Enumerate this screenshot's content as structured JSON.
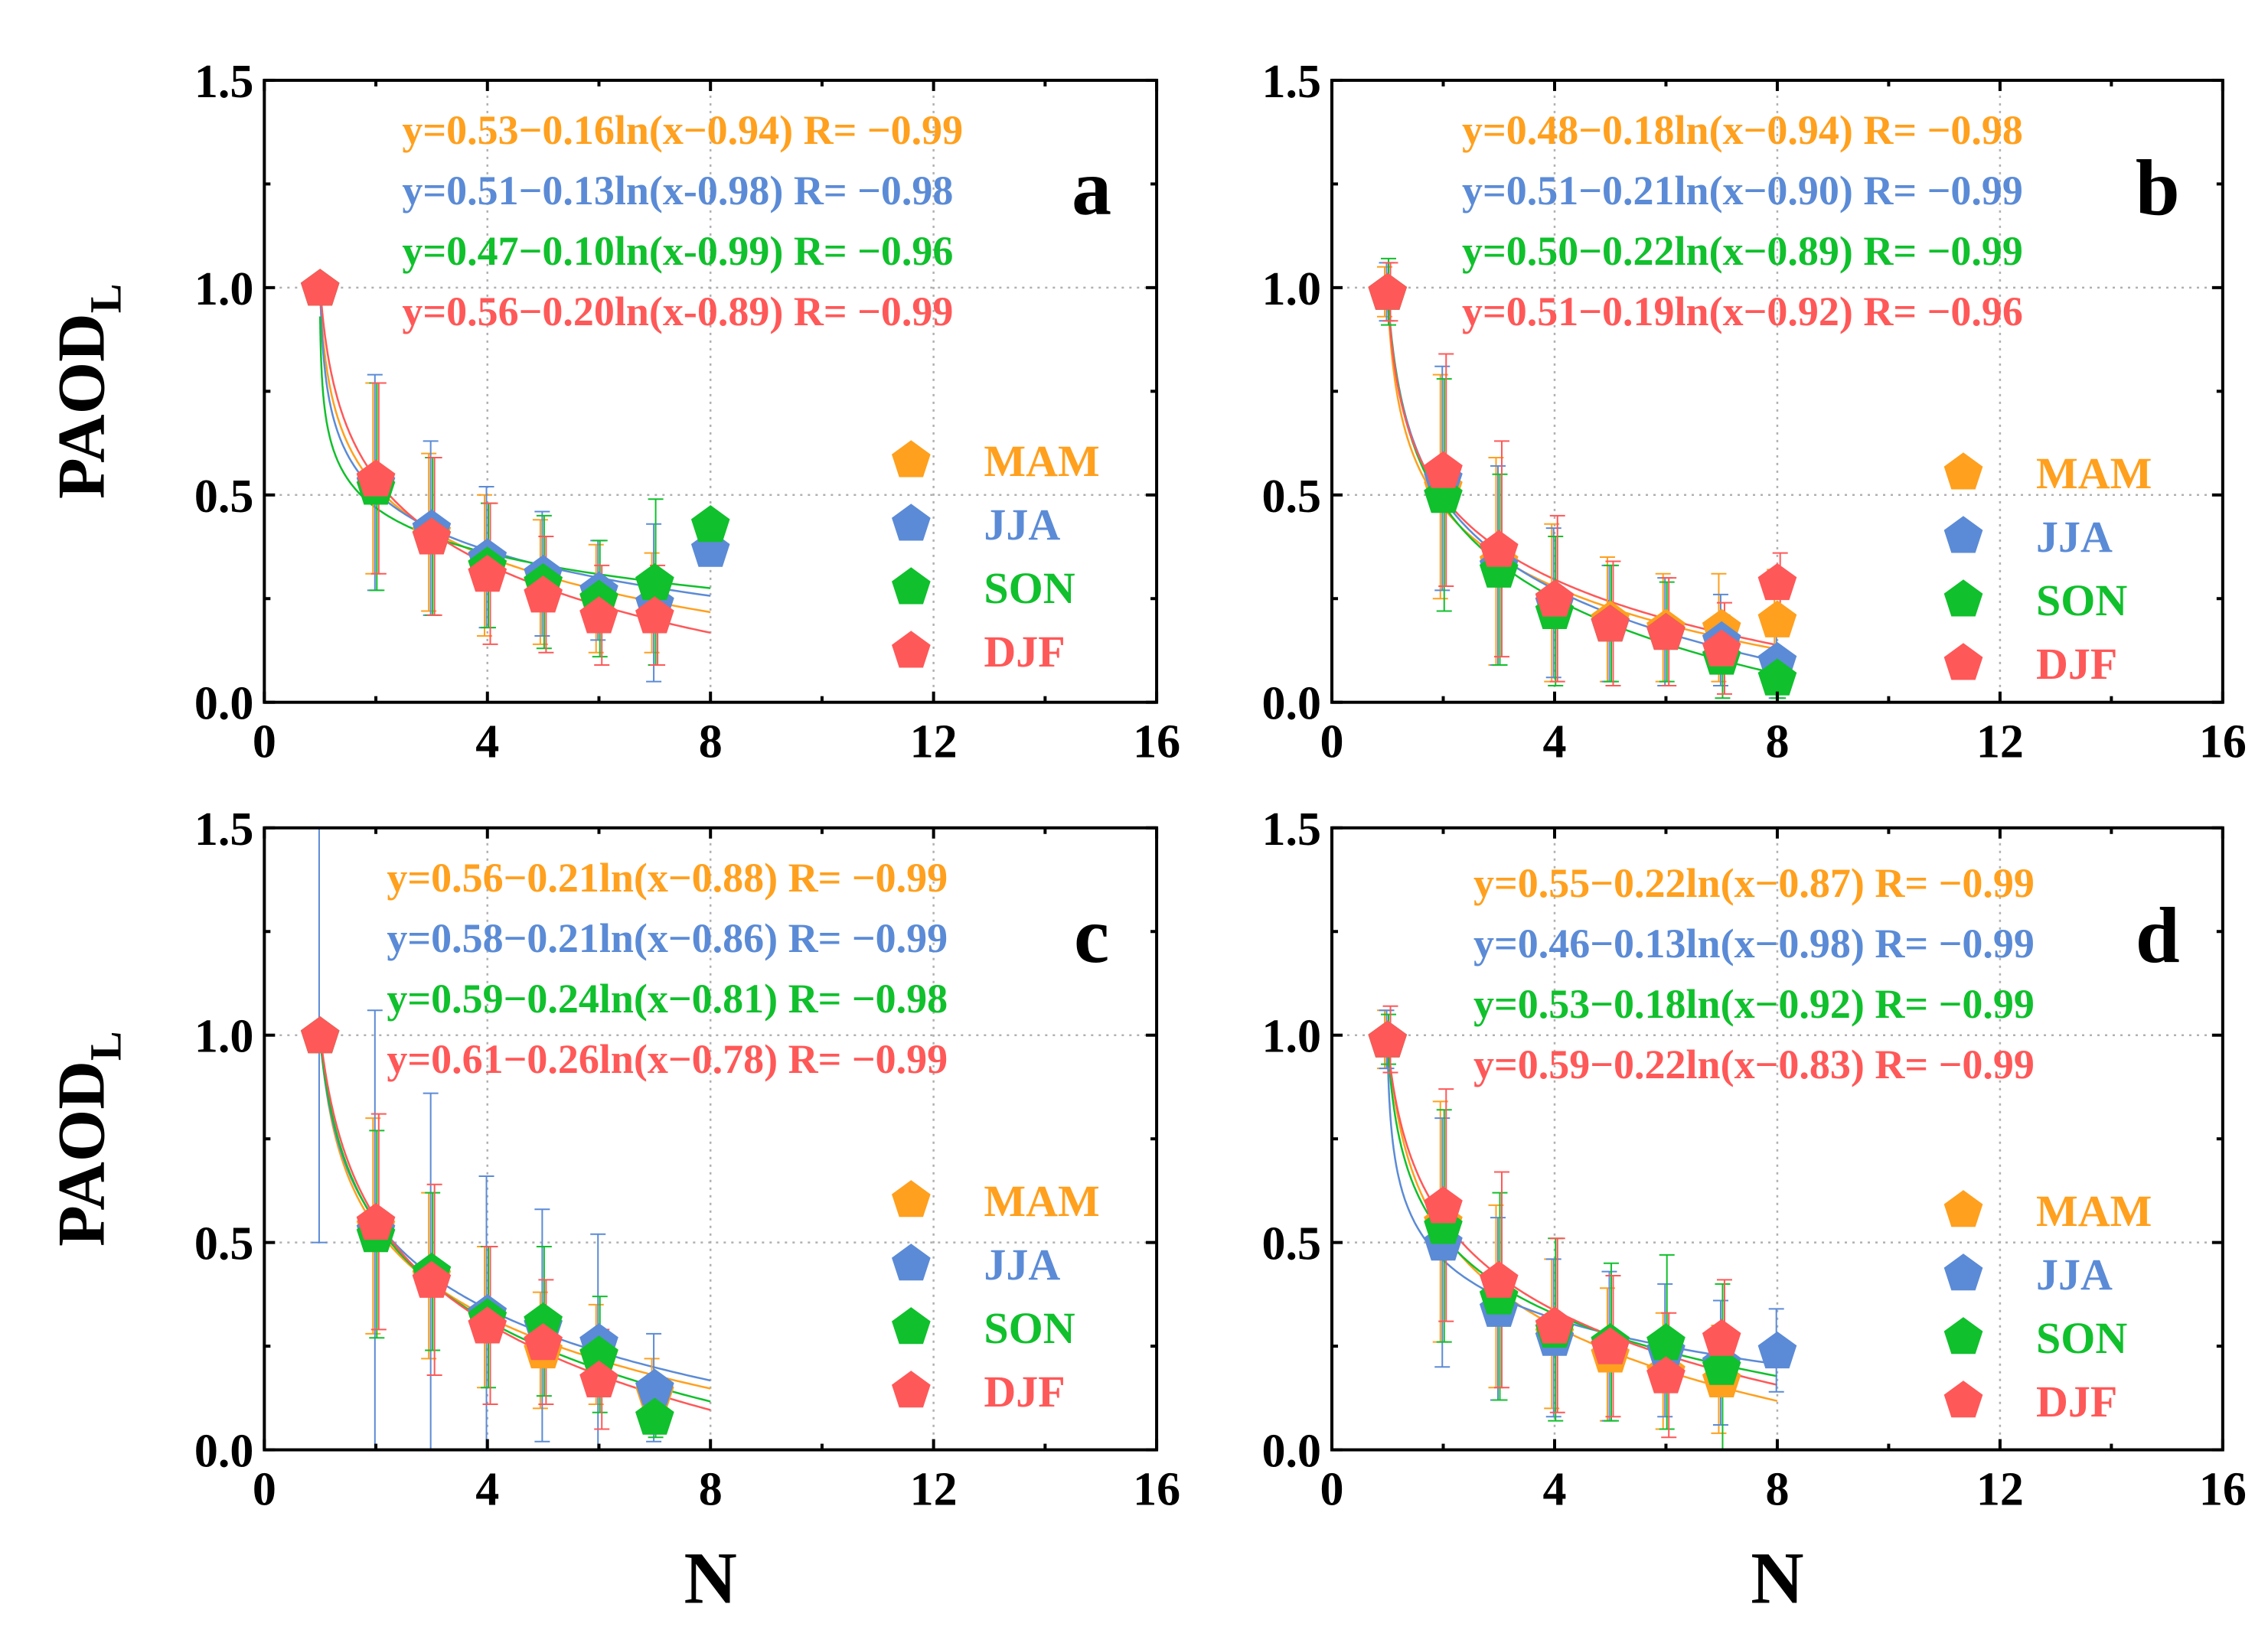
{
  "colors": {
    "MAM": "#FFA01E",
    "JJA": "#5B8BD6",
    "SON": "#10C02C",
    "DJF": "#FF5858",
    "grid": "#b0b0b0",
    "axis": "#000000"
  },
  "chart_data": [
    {
      "type": "scatter",
      "panel_label": "a",
      "xlabel": "",
      "ylabel": "PAOD",
      "ylabel_sub": "L",
      "xlim": [
        0,
        16
      ],
      "ylim": [
        0,
        1.5
      ],
      "xticks": [
        "0",
        "4",
        "8",
        "12",
        "16"
      ],
      "yticks": [
        "0.0",
        "0.5",
        "1.0",
        "1.5"
      ],
      "grid": true,
      "legend_position": "right",
      "fits": [
        {
          "series": "MAM",
          "a": 0.53,
          "b": 0.16,
          "c": 0.94,
          "text": "y=0.53−0.16ln(x−0.94) R= −0.99"
        },
        {
          "series": "JJA",
          "a": 0.51,
          "b": 0.13,
          "c": 0.98,
          "text": "y=0.51−0.13ln(x-0.98) R= −0.98"
        },
        {
          "series": "SON",
          "a": 0.47,
          "b": 0.1,
          "c": 0.99,
          "text": "y=0.47−0.10ln(x-0.99) R= −0.96"
        },
        {
          "series": "DJF",
          "a": 0.56,
          "b": 0.2,
          "c": 0.89,
          "text": "y=0.56−0.20ln(x-0.89) R= −0.99"
        }
      ],
      "series": [
        {
          "name": "MAM",
          "x": [
            1,
            2,
            3,
            4,
            5,
            6,
            7
          ],
          "y": [
            1.0,
            0.54,
            0.41,
            0.33,
            0.29,
            0.25,
            0.24
          ],
          "err": [
            0,
            0.23,
            0.19,
            0.17,
            0.15,
            0.13,
            0.12
          ]
        },
        {
          "name": "JJA",
          "x": [
            1,
            2,
            3,
            4,
            5,
            6,
            7,
            8
          ],
          "y": [
            1.0,
            0.53,
            0.42,
            0.35,
            0.31,
            0.27,
            0.24,
            0.37
          ],
          "err": [
            0,
            0.26,
            0.21,
            0.17,
            0.15,
            0.12,
            0.19,
            0
          ]
        },
        {
          "name": "SON",
          "x": [
            1,
            2,
            3,
            4,
            5,
            6,
            7,
            8
          ],
          "y": [
            1.0,
            0.52,
            0.4,
            0.33,
            0.29,
            0.25,
            0.29,
            0.43
          ],
          "err": [
            0,
            0.25,
            0.19,
            0.15,
            0.16,
            0.14,
            0.2,
            0
          ]
        },
        {
          "name": "DJF",
          "x": [
            1,
            2,
            3,
            4,
            5,
            6,
            7
          ],
          "y": [
            1.0,
            0.54,
            0.4,
            0.31,
            0.26,
            0.21,
            0.21
          ],
          "err": [
            0,
            0.23,
            0.19,
            0.17,
            0.14,
            0.12,
            0.12
          ]
        }
      ]
    },
    {
      "type": "scatter",
      "panel_label": "b",
      "xlabel": "",
      "ylabel": "",
      "ylabel_sub": "",
      "xlim": [
        0,
        16
      ],
      "ylim": [
        0,
        1.5
      ],
      "xticks": [
        "0",
        "4",
        "8",
        "12",
        "16"
      ],
      "yticks": [
        "0.0",
        "0.5",
        "1.0",
        "1.5"
      ],
      "grid": true,
      "legend_position": "right",
      "fits": [
        {
          "series": "MAM",
          "a": 0.48,
          "b": 0.18,
          "c": 0.94,
          "text": "y=0.48−0.18ln(x−0.94) R= −0.98"
        },
        {
          "series": "JJA",
          "a": 0.51,
          "b": 0.21,
          "c": 0.9,
          "text": "y=0.51−0.21ln(x−0.90) R= −0.99"
        },
        {
          "series": "SON",
          "a": 0.5,
          "b": 0.22,
          "c": 0.89,
          "text": "y=0.50−0.22ln(x−0.89) R= −0.99"
        },
        {
          "series": "DJF",
          "a": 0.51,
          "b": 0.19,
          "c": 0.92,
          "text": "y=0.51−0.19ln(x−0.92) R= −0.96"
        }
      ],
      "series": [
        {
          "name": "MAM",
          "x": [
            1,
            2,
            3,
            4,
            5,
            6,
            7,
            8
          ],
          "y": [
            0.99,
            0.52,
            0.34,
            0.24,
            0.2,
            0.18,
            0.18,
            0.2
          ],
          "err": [
            0.06,
            0.27,
            0.25,
            0.19,
            0.15,
            0.13,
            0.13,
            0.12
          ]
        },
        {
          "name": "JJA",
          "x": [
            1,
            2,
            3,
            4,
            5,
            6,
            7,
            8
          ],
          "y": [
            0.99,
            0.54,
            0.33,
            0.24,
            0.19,
            0.17,
            0.15,
            0.1
          ],
          "err": [
            0.07,
            0.27,
            0.24,
            0.18,
            0.14,
            0.13,
            0.11,
            0.09
          ]
        },
        {
          "name": "SON",
          "x": [
            1,
            2,
            3,
            4,
            5,
            6,
            7,
            8
          ],
          "y": [
            0.99,
            0.5,
            0.32,
            0.22,
            0.19,
            0.17,
            0.11,
            0.06
          ],
          "err": [
            0.08,
            0.28,
            0.23,
            0.18,
            0.14,
            0.12,
            0.1,
            0.05
          ]
        },
        {
          "name": "DJF",
          "x": [
            1,
            2,
            3,
            4,
            5,
            6,
            7,
            8
          ],
          "y": [
            0.99,
            0.56,
            0.37,
            0.25,
            0.19,
            0.17,
            0.13,
            0.29
          ],
          "err": [
            0.07,
            0.28,
            0.26,
            0.2,
            0.15,
            0.13,
            0.11,
            0.07
          ]
        }
      ]
    },
    {
      "type": "scatter",
      "panel_label": "c",
      "xlabel": "N",
      "ylabel": "PAOD",
      "ylabel_sub": "L",
      "xlim": [
        0,
        16
      ],
      "ylim": [
        0,
        1.5
      ],
      "xticks": [
        "0",
        "4",
        "8",
        "12",
        "16"
      ],
      "yticks": [
        "0.0",
        "0.5",
        "1.0",
        "1.5"
      ],
      "grid": true,
      "legend_position": "right",
      "fits": [
        {
          "series": "MAM",
          "a": 0.56,
          "b": 0.21,
          "c": 0.88,
          "text": "y=0.56−0.21ln(x−0.88) R= −0.99"
        },
        {
          "series": "JJA",
          "a": 0.58,
          "b": 0.21,
          "c": 0.86,
          "text": "y=0.58−0.21ln(x−0.86) R= −0.99"
        },
        {
          "series": "SON",
          "a": 0.59,
          "b": 0.24,
          "c": 0.81,
          "text": "y=0.59−0.24ln(x−0.81) R= −0.98"
        },
        {
          "series": "DJF",
          "a": 0.61,
          "b": 0.26,
          "c": 0.78,
          "text": "y=0.61−0.26ln(x−0.78) R= −0.99"
        }
      ],
      "series": [
        {
          "name": "MAM",
          "x": [
            1,
            2,
            3,
            4,
            5,
            6,
            7
          ],
          "y": [
            1.0,
            0.54,
            0.42,
            0.32,
            0.24,
            0.23,
            0.14
          ],
          "err": [
            0,
            0.26,
            0.2,
            0.17,
            0.14,
            0.12,
            0.08
          ]
        },
        {
          "name": "JJA",
          "x": [
            1,
            2,
            3,
            4,
            5,
            6,
            7
          ],
          "y": [
            1.0,
            0.53,
            0.43,
            0.33,
            0.3,
            0.26,
            0.15
          ],
          "err": [
            0.5,
            0.53,
            0.43,
            0.33,
            0.28,
            0.26,
            0.13
          ]
        },
        {
          "name": "SON",
          "x": [
            1,
            2,
            3,
            4,
            5,
            6,
            7
          ],
          "y": [
            1.0,
            0.52,
            0.43,
            0.32,
            0.31,
            0.23,
            0.08
          ],
          "err": [
            0,
            0.25,
            0.19,
            0.17,
            0.18,
            0.14,
            0.05
          ]
        },
        {
          "name": "DJF",
          "x": [
            1,
            2,
            3,
            4,
            5,
            6
          ],
          "y": [
            1.0,
            0.55,
            0.41,
            0.3,
            0.26,
            0.17
          ],
          "err": [
            0,
            0.26,
            0.23,
            0.19,
            0.15,
            0.12
          ]
        }
      ]
    },
    {
      "type": "scatter",
      "panel_label": "d",
      "xlabel": "N",
      "ylabel": "",
      "ylabel_sub": "",
      "xlim": [
        0,
        16
      ],
      "ylim": [
        0,
        1.5
      ],
      "xticks": [
        "0",
        "4",
        "8",
        "12",
        "16"
      ],
      "yticks": [
        "0.0",
        "0.5",
        "1.0",
        "1.5"
      ],
      "grid": true,
      "legend_position": "right",
      "fits": [
        {
          "series": "MAM",
          "a": 0.55,
          "b": 0.22,
          "c": 0.87,
          "text": "y=0.55−0.22ln(x−0.87) R= −0.99"
        },
        {
          "series": "JJA",
          "a": 0.46,
          "b": 0.13,
          "c": 0.98,
          "text": "y=0.46−0.13ln(x−0.98) R= −0.99"
        },
        {
          "series": "SON",
          "a": 0.53,
          "b": 0.18,
          "c": 0.92,
          "text": "y=0.53−0.18ln(x−0.92) R= −0.99"
        },
        {
          "series": "DJF",
          "a": 0.59,
          "b": 0.22,
          "c": 0.83,
          "text": "y=0.59−0.22ln(x−0.83) R= −0.99"
        }
      ],
      "series": [
        {
          "name": "MAM",
          "x": [
            1,
            2,
            3,
            4,
            5,
            6,
            7
          ],
          "y": [
            0.99,
            0.55,
            0.37,
            0.28,
            0.23,
            0.19,
            0.17
          ],
          "err": [
            0.07,
            0.29,
            0.22,
            0.18,
            0.16,
            0.14,
            0.13
          ]
        },
        {
          "name": "JJA",
          "x": [
            1,
            2,
            3,
            4,
            5,
            6,
            7,
            8
          ],
          "y": [
            0.99,
            0.5,
            0.34,
            0.27,
            0.25,
            0.24,
            0.21,
            0.24
          ],
          "err": [
            0.07,
            0.3,
            0.22,
            0.19,
            0.18,
            0.16,
            0.15,
            0.1
          ]
        },
        {
          "name": "SON",
          "x": [
            1,
            2,
            3,
            4,
            5,
            6,
            7
          ],
          "y": [
            0.99,
            0.54,
            0.37,
            0.29,
            0.26,
            0.26,
            0.2
          ],
          "err": [
            0.06,
            0.28,
            0.25,
            0.22,
            0.19,
            0.21,
            0.2
          ]
        },
        {
          "name": "DJF",
          "x": [
            1,
            2,
            3,
            4,
            5,
            6,
            7
          ],
          "y": [
            0.99,
            0.59,
            0.41,
            0.3,
            0.25,
            0.18,
            0.27
          ],
          "err": [
            0.08,
            0.28,
            0.26,
            0.21,
            0.17,
            0.15,
            0.14
          ]
        }
      ]
    }
  ]
}
